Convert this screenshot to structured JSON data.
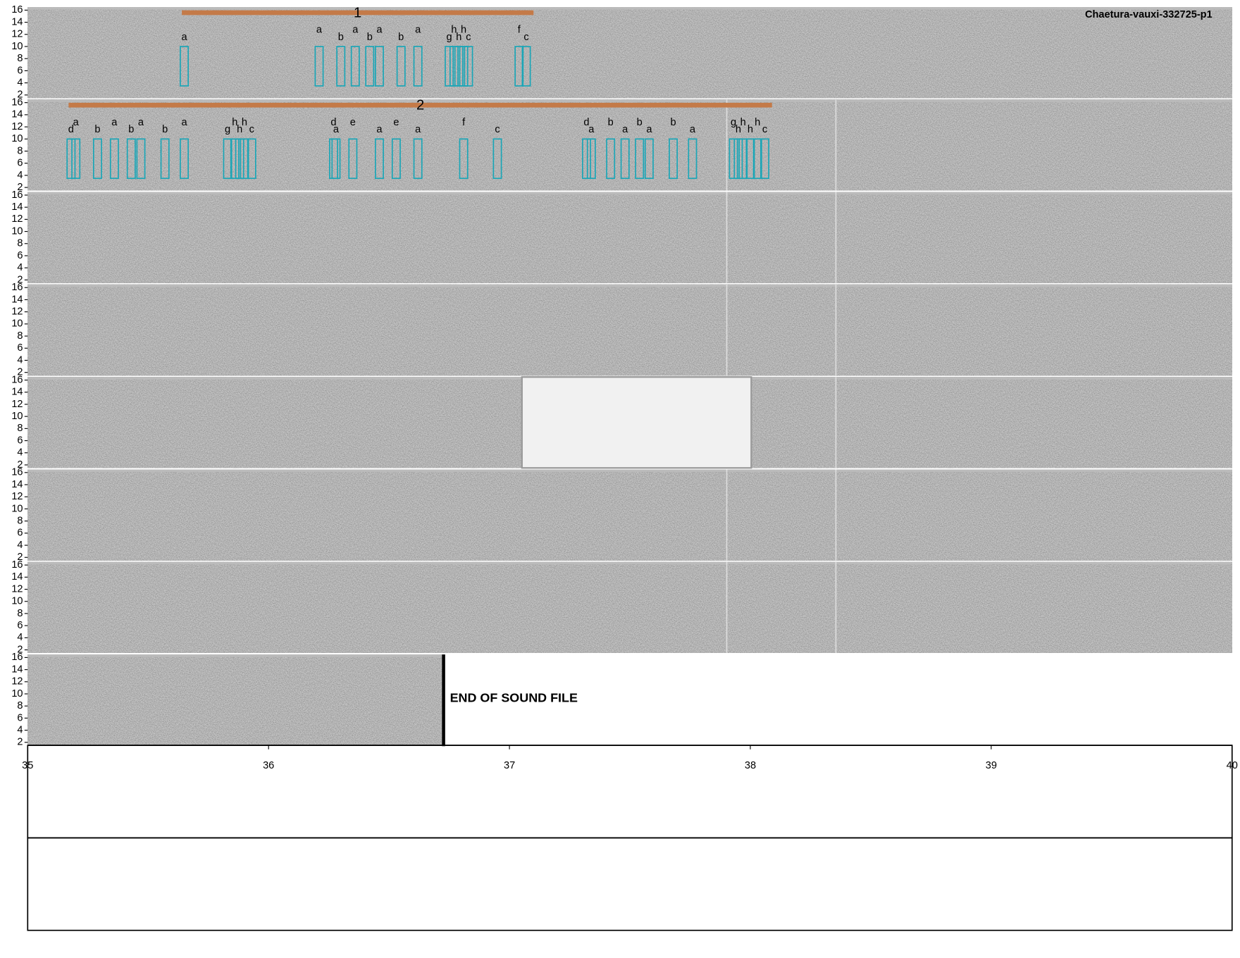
{
  "chart_data": {
    "type": "spectrogram",
    "title": "Chaetura-vauxi-332725-p1",
    "xlim": [
      35,
      40
    ],
    "xticks": [
      35,
      36,
      37,
      38,
      39,
      40
    ],
    "ylim": [
      1.5,
      16.5
    ],
    "yticks": [
      2,
      4,
      6,
      8,
      10,
      12,
      14,
      16
    ],
    "end_time": 36.72,
    "end_label": "END OF SOUND FILE",
    "rows": [
      {
        "segment": {
          "label": "1",
          "start": 0.64,
          "end": 2.1
        },
        "syllables": [
          {
            "label": "a",
            "time": 0.65
          },
          {
            "label": "a",
            "time": 1.21
          },
          {
            "label": "b",
            "time": 1.3
          },
          {
            "label": "a",
            "time": 1.36
          },
          {
            "label": "b",
            "time": 1.42
          },
          {
            "label": "a",
            "time": 1.46
          },
          {
            "label": "b",
            "time": 1.55
          },
          {
            "label": "a",
            "time": 1.62
          },
          {
            "label": "g",
            "time": 1.75
          },
          {
            "label": "h",
            "time": 1.77
          },
          {
            "label": "h",
            "time": 1.79
          },
          {
            "label": "h",
            "time": 1.81
          },
          {
            "label": "c",
            "time": 1.83
          },
          {
            "label": "f",
            "time": 2.04
          },
          {
            "label": "c",
            "time": 2.07
          }
        ]
      },
      {
        "segment": {
          "label": "2",
          "start": 5.17,
          "end": 8.09
        },
        "syllables": [
          {
            "label": "d",
            "time": 5.18
          },
          {
            "label": "a",
            "time": 5.2
          },
          {
            "label": "b",
            "time": 5.29
          },
          {
            "label": "a",
            "time": 5.36
          },
          {
            "label": "b",
            "time": 5.43
          },
          {
            "label": "a",
            "time": 5.47
          },
          {
            "label": "b",
            "time": 5.57
          },
          {
            "label": "a",
            "time": 5.65
          },
          {
            "label": "g",
            "time": 5.83
          },
          {
            "label": "h",
            "time": 5.86
          },
          {
            "label": "h",
            "time": 5.88
          },
          {
            "label": "h",
            "time": 5.9
          },
          {
            "label": "c",
            "time": 5.93
          },
          {
            "label": "d",
            "time": 6.27
          },
          {
            "label": "a",
            "time": 6.28
          },
          {
            "label": "e",
            "time": 6.35
          },
          {
            "label": "a",
            "time": 6.46
          },
          {
            "label": "e",
            "time": 6.53
          },
          {
            "label": "a",
            "time": 6.62
          },
          {
            "label": "f",
            "time": 6.81
          },
          {
            "label": "c",
            "time": 6.95
          },
          {
            "label": "d",
            "time": 7.32
          },
          {
            "label": "a",
            "time": 7.34
          },
          {
            "label": "b",
            "time": 7.42
          },
          {
            "label": "a",
            "time": 7.48
          },
          {
            "label": "b",
            "time": 7.54
          },
          {
            "label": "a",
            "time": 7.58
          },
          {
            "label": "b",
            "time": 7.68
          },
          {
            "label": "a",
            "time": 7.76
          },
          {
            "label": "g",
            "time": 7.93
          },
          {
            "label": "h",
            "time": 7.95
          },
          {
            "label": "h",
            "time": 7.97
          },
          {
            "label": "h",
            "time": 8.0
          },
          {
            "label": "h",
            "time": 8.03
          },
          {
            "label": "c",
            "time": 8.06
          }
        ]
      },
      {},
      {},
      {},
      {},
      {},
      {}
    ]
  }
}
